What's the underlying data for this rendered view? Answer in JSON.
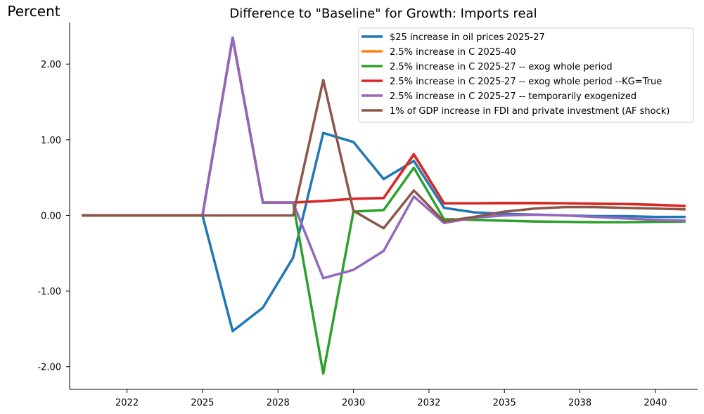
{
  "chart_data": {
    "type": "line",
    "title": "Difference to \"Baseline\" for Growth: Imports real",
    "ylabel": "Percent",
    "xlabel": "",
    "ylim": [
      -2.3,
      2.55
    ],
    "xlim": [
      2019.6,
      2040.4
    ],
    "x": [
      2020,
      2021,
      2022,
      2023,
      2024,
      2025,
      2026,
      2027,
      2028,
      2029,
      2030,
      2031,
      2032,
      2033,
      2034,
      2035,
      2036,
      2037,
      2038,
      2039,
      2040
    ],
    "x_ticks": [
      {
        "value": 2021.5,
        "label": "2022"
      },
      {
        "value": 2024,
        "label": "2025"
      },
      {
        "value": 2026.5,
        "label": "2028"
      },
      {
        "value": 2029,
        "label": "2030"
      },
      {
        "value": 2031.5,
        "label": "2032"
      },
      {
        "value": 2034,
        "label": "2035"
      },
      {
        "value": 2036.5,
        "label": "2038"
      },
      {
        "value": 2039,
        "label": "2040"
      }
    ],
    "y_ticks": [
      {
        "value": 2,
        "label": "2.00"
      },
      {
        "value": 1,
        "label": "1.00"
      },
      {
        "value": 0,
        "label": "0.00"
      },
      {
        "value": -1,
        "label": "-1.00"
      },
      {
        "value": -2,
        "label": "-2.00"
      }
    ],
    "legend_position": "top-right",
    "grid": false,
    "series": [
      {
        "name": "$25 increase in oil prices 2025-27",
        "color": "#1f77b4",
        "values": [
          0,
          0,
          0,
          0,
          0,
          -1.53,
          -1.22,
          -0.56,
          1.09,
          0.97,
          0.48,
          0.72,
          0.1,
          0.04,
          0.02,
          0.01,
          0.0,
          -0.01,
          -0.01,
          -0.02,
          -0.02
        ]
      },
      {
        "name": "2.5% increase in C 2025-40",
        "color": "#ff7f0e",
        "values": [
          0,
          0,
          0,
          0,
          0,
          2.35,
          0.17,
          0.17,
          0.19,
          0.22,
          0.23,
          0.8,
          0.16,
          0.16,
          0.16,
          0.16,
          0.16,
          0.15,
          0.15,
          0.14,
          0.12
        ]
      },
      {
        "name": "2.5% increase in C 2025-27 -- exog whole period",
        "color": "#2ca02c",
        "values": [
          0,
          0,
          0,
          0,
          0,
          2.35,
          0.17,
          0.17,
          -2.09,
          0.05,
          0.07,
          0.63,
          -0.05,
          -0.06,
          -0.07,
          -0.08,
          -0.085,
          -0.09,
          -0.09,
          -0.085,
          -0.08
        ]
      },
      {
        "name": "2.5% increase in C 2025-27 -- exog whole period --KG=True",
        "color": "#d62728",
        "values": [
          0,
          0,
          0,
          0,
          0,
          2.35,
          0.17,
          0.17,
          0.19,
          0.22,
          0.23,
          0.81,
          0.16,
          0.16,
          0.165,
          0.165,
          0.16,
          0.155,
          0.15,
          0.14,
          0.125
        ]
      },
      {
        "name": "2.5% increase in C 2025-27 -- temporarily exogenized",
        "color": "#9467bd",
        "values": [
          0,
          0,
          0,
          0,
          0,
          2.35,
          0.17,
          0.17,
          -0.83,
          -0.72,
          -0.47,
          0.25,
          -0.1,
          -0.03,
          0.0,
          0.01,
          0.0,
          -0.02,
          -0.04,
          -0.06,
          -0.07
        ]
      },
      {
        "name": "1% of GDP increase in FDI and private investment (AF shock)",
        "color": "#8c564b",
        "values": [
          0,
          0,
          0,
          0,
          0,
          0,
          0,
          0,
          1.79,
          0.06,
          -0.17,
          0.33,
          -0.08,
          -0.02,
          0.05,
          0.09,
          0.11,
          0.11,
          0.1,
          0.09,
          0.08
        ]
      }
    ]
  }
}
